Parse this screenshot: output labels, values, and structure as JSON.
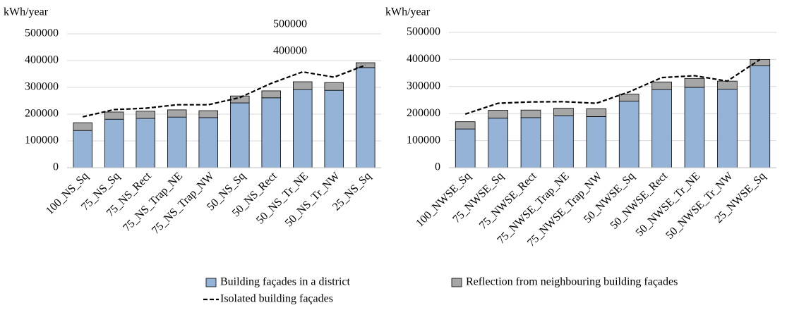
{
  "chart_data": [
    {
      "type": "bar",
      "stacked": true,
      "ylabel": "kWh/year",
      "categories": [
        "100_NS_Sq",
        "75_NS_Sq",
        "75_NS_Rect",
        "75_NS_Trap_NE",
        "75_NS_Trap_NW",
        "50_NS_Sq",
        "50_NS_Rect",
        "50_NS_Tr_NE",
        "50_NS_Tr_NW",
        "25_NS_Sq"
      ],
      "series": [
        {
          "name": "Building façades in a district",
          "type": "bar",
          "color": "#95b3d7",
          "values": [
            139000,
            181000,
            184000,
            189000,
            187000,
            242000,
            261000,
            292000,
            289000,
            374000
          ]
        },
        {
          "name": "Reflection from neighbouring building façades",
          "type": "bar",
          "color": "#a6a6a6",
          "values": [
            29000,
            27000,
            27000,
            27000,
            26000,
            26000,
            26000,
            29000,
            29000,
            18000
          ]
        },
        {
          "name": "Isolated building façades",
          "type": "line",
          "color": "#000000",
          "values": [
            190000,
            217000,
            222000,
            235000,
            235000,
            262000,
            315000,
            358000,
            338000,
            383000
          ]
        }
      ],
      "annotations": [
        "500000",
        "400000"
      ],
      "ylim": [
        0,
        500000
      ],
      "yticks": [
        0,
        100000,
        200000,
        300000,
        400000,
        500000
      ]
    },
    {
      "type": "bar",
      "stacked": true,
      "ylabel": "kWh/year",
      "categories": [
        "100_NWSE_Sq",
        "75_NWSE_Sq",
        "75_NWSE_Rect",
        "75_NWSE_Trap_NE",
        "75_NWSE_Trap_NW",
        "50_NWSE_Sq",
        "50_NWSE_Rect",
        "50_NWSE_Tr_NE",
        "50_NWSE_Tr_NW",
        "25_NWSE_Sq"
      ],
      "series": [
        {
          "type": "bar",
          "color": "#95b3d7",
          "values": [
            143000,
            183000,
            185000,
            192000,
            189000,
            246000,
            289000,
            297000,
            290000,
            377000
          ]
        },
        {
          "type": "bar",
          "color": "#a6a6a6",
          "values": [
            27000,
            29000,
            28000,
            28000,
            29000,
            26000,
            28000,
            33000,
            30000,
            23000
          ]
        },
        {
          "type": "line",
          "color": "#000000",
          "values": [
            198000,
            238000,
            243000,
            244000,
            238000,
            280000,
            333000,
            340000,
            320000,
            400000
          ]
        }
      ],
      "ylim": [
        0,
        500000
      ],
      "yticks": [
        0,
        100000,
        200000,
        300000,
        400000,
        500000
      ]
    }
  ]
}
